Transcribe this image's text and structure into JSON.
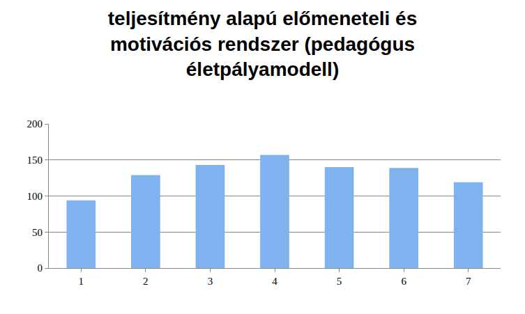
{
  "chart_data": {
    "type": "bar",
    "title": "teljesítmény alapú előmeneteli és motivációs rendszer (pedagógus életpályamodell)",
    "categories": [
      "1",
      "2",
      "3",
      "4",
      "5",
      "6",
      "7"
    ],
    "values": [
      94,
      129,
      143,
      157,
      140,
      139,
      119
    ],
    "color": "#7fb3ef",
    "ylim": [
      0,
      200
    ],
    "yticks": [
      0,
      50,
      100,
      150,
      200
    ],
    "grid": true
  }
}
